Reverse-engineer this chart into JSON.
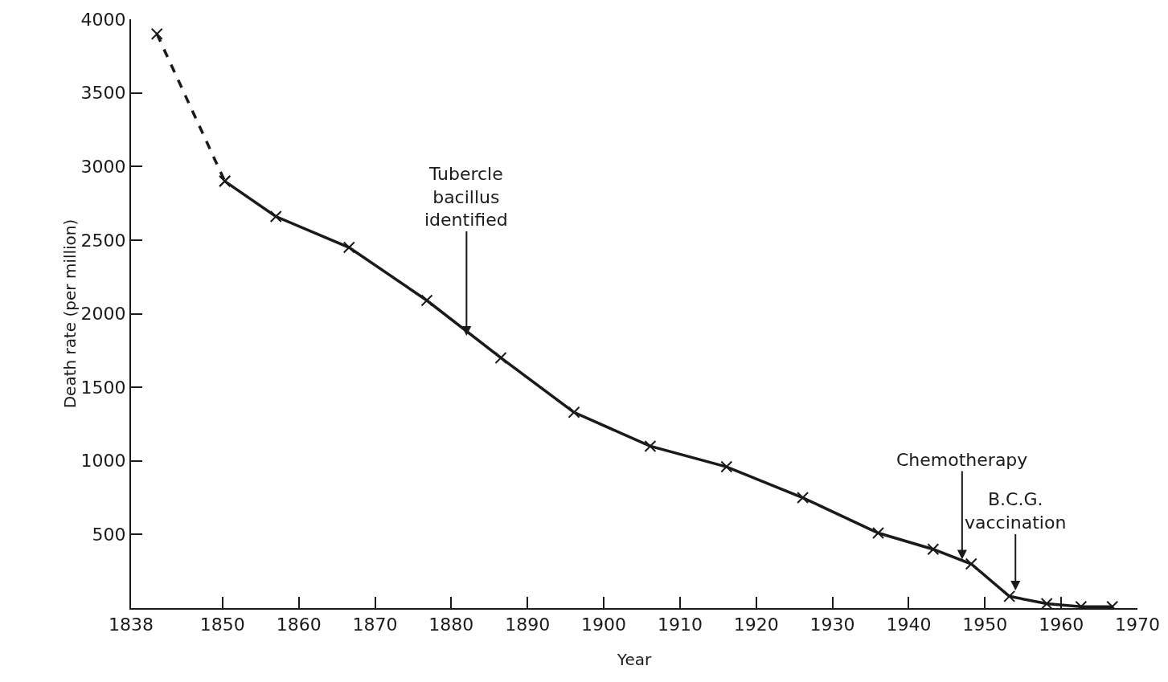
{
  "chart_data": {
    "type": "line",
    "xlabel": "Year",
    "ylabel": "Death rate (per million)",
    "xlim": [
      1838,
      1970
    ],
    "xticks": [
      1838,
      1850,
      1860,
      1870,
      1880,
      1890,
      1900,
      1910,
      1920,
      1930,
      1940,
      1950,
      1960,
      1970
    ],
    "ylim": [
      0,
      4000
    ],
    "yticks": [
      {
        "value": 0,
        "label": null
      },
      500,
      1000,
      1500,
      2000,
      2500,
      3000,
      3500,
      4000
    ],
    "grid": false,
    "series": [
      {
        "color": "#1a1a1a",
        "line_style": "dashed",
        "marker": "cross",
        "x": [
          1841.4,
          1850.3
        ],
        "values": [
          3900,
          2900
        ]
      },
      {
        "color": "#1a1a1a",
        "line_style": "solid",
        "marker": "cross",
        "x": [
          1850.3,
          1857,
          1866.6,
          1876.8,
          1886.5,
          1896.1,
          1906.1,
          1916.1,
          1926.1,
          1936,
          1943.2,
          1948.2,
          1953.2,
          1958.1,
          1962.6,
          1966.7
        ],
        "values": [
          2900,
          2660,
          2450,
          2090,
          1700,
          1330,
          1100,
          960,
          750,
          510,
          400,
          300,
          80,
          30,
          10,
          10
        ]
      }
    ],
    "annotations": [
      {
        "text": "Tubercle\nbacillus\nidentified",
        "x": 1882,
        "y": 1850
      },
      {
        "text": "Chemotherapy",
        "x": 1947,
        "y": 330
      },
      {
        "text": "B.C.G.\nvaccination",
        "x": 1954,
        "y": 120
      }
    ]
  }
}
